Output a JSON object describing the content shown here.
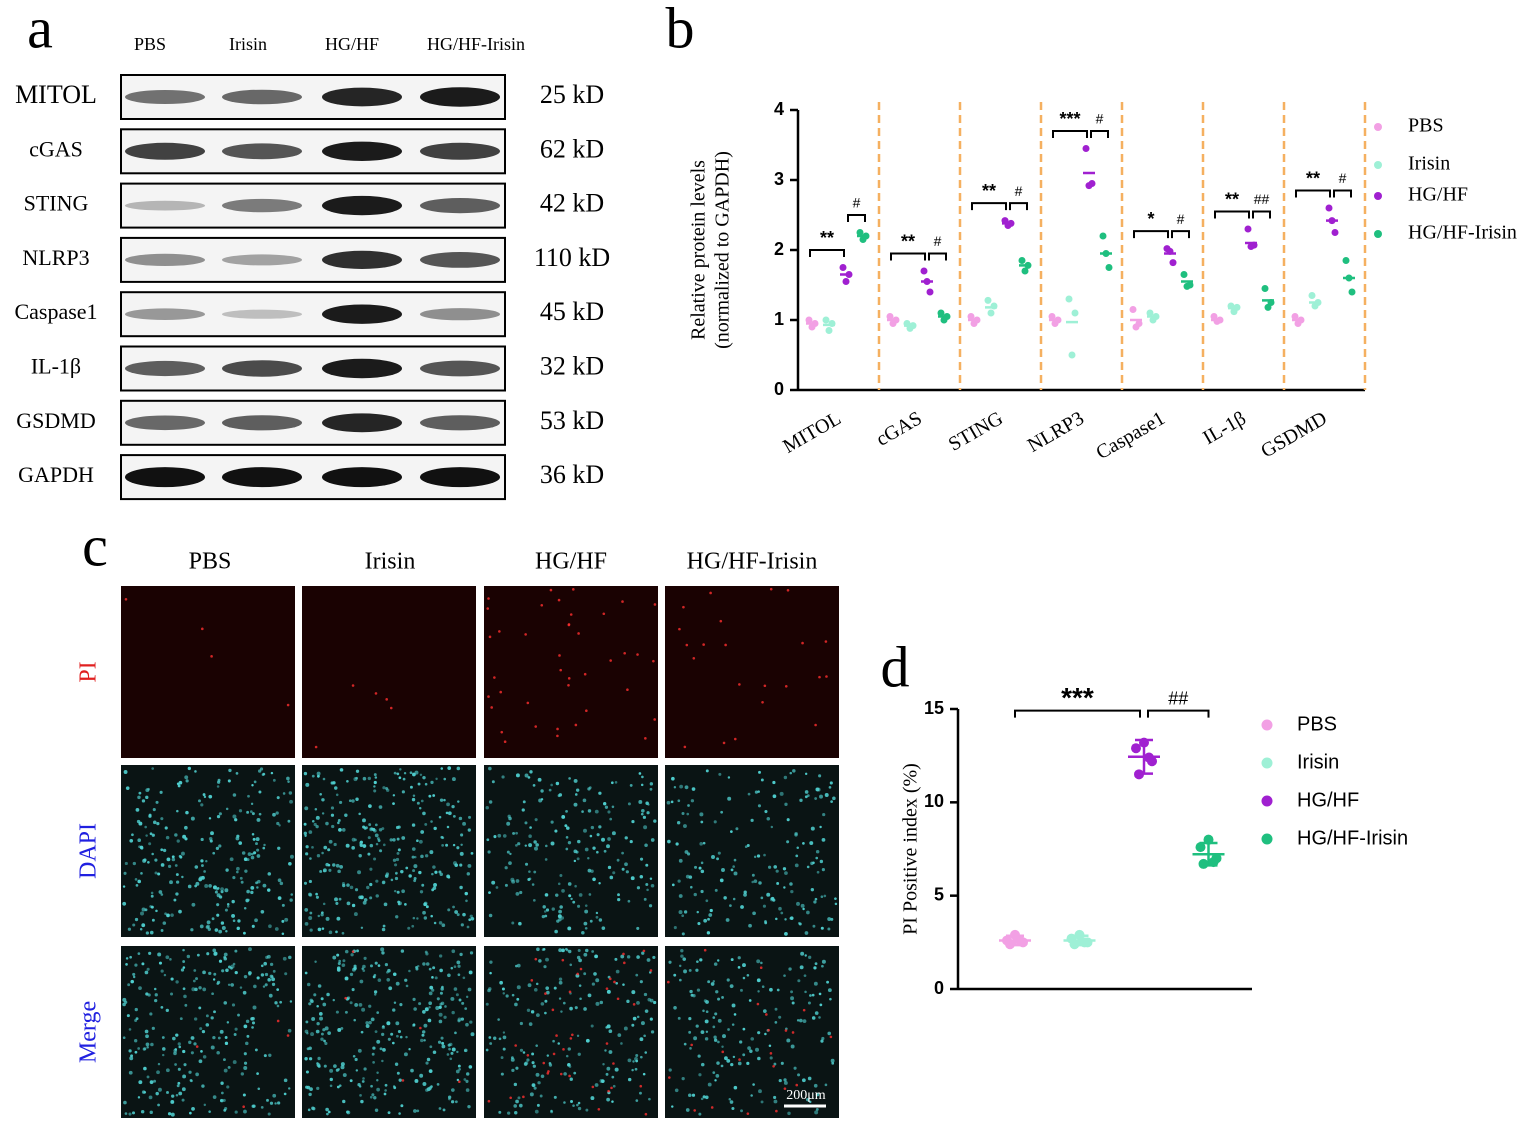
{
  "panel_a": {
    "label": "a",
    "lanes": [
      "PBS",
      "Irisin",
      "HG/HF",
      "HG/HF-Irisin"
    ],
    "rows": [
      {
        "protein": "MITOL",
        "size": "25 kD"
      },
      {
        "protein": "cGAS",
        "size": "62 kD"
      },
      {
        "protein": "STING",
        "size": "42 kD"
      },
      {
        "protein": "NLRP3",
        "size": "110 kD"
      },
      {
        "protein": "Caspase1",
        "size": "45 kD"
      },
      {
        "protein": "IL-1β",
        "size": "32 kD"
      },
      {
        "protein": "GSDMD",
        "size": "53 kD"
      },
      {
        "protein": "GAPDH",
        "size": "36 kD"
      }
    ]
  },
  "panel_c": {
    "label": "c",
    "columns": [
      "PBS",
      "Irisin",
      "HG/HF",
      "HG/HF-Irisin"
    ],
    "rows": [
      "PI",
      "DAPI",
      "Merge"
    ],
    "scale_bar": "200μm"
  },
  "chart_data": [
    {
      "type": "dotplot",
      "panel_label": "b",
      "ylabel": [
        "Relative protein levels",
        "(normalized to GAPDH)"
      ],
      "categories": [
        "MITOL",
        "cGAS",
        "STING",
        "NLRP3",
        "Caspase1",
        "IL-1β",
        "GSDMD"
      ],
      "ylim": [
        0,
        4
      ],
      "yticks": [
        0,
        1,
        2,
        3,
        4
      ],
      "series": [
        {
          "name": "PBS",
          "color": "#f2a0e4",
          "values": [
            0.95,
            1.0,
            1.0,
            1.0,
            1.0,
            1.0,
            1.0
          ],
          "points": [
            [
              1.0,
              0.9,
              0.95
            ],
            [
              1.05,
              0.95,
              1.0
            ],
            [
              1.05,
              0.95,
              1.0
            ],
            [
              1.05,
              0.95,
              1.0
            ],
            [
              1.15,
              0.9,
              0.95
            ],
            [
              1.05,
              0.98,
              1.0
            ],
            [
              1.05,
              0.95,
              1.0
            ]
          ]
        },
        {
          "name": "Irisin",
          "color": "#9ef0d6",
          "values": [
            0.93,
            0.92,
            1.18,
            0.97,
            1.05,
            1.17,
            1.25
          ],
          "points": [
            [
              1.0,
              0.85,
              0.95
            ],
            [
              0.95,
              0.88,
              0.92
            ],
            [
              1.28,
              1.1,
              1.2
            ],
            [
              1.3,
              0.5,
              1.1
            ],
            [
              1.1,
              1.0,
              1.05
            ],
            [
              1.2,
              1.12,
              1.18
            ],
            [
              1.35,
              1.2,
              1.25
            ]
          ]
        },
        {
          "name": "HG/HF",
          "color": "#a020d0",
          "values": [
            1.65,
            1.55,
            2.38,
            3.1,
            1.95,
            2.1,
            2.42
          ],
          "points": [
            [
              1.75,
              1.55,
              1.65
            ],
            [
              1.7,
              1.55,
              1.4
            ],
            [
              2.42,
              2.35,
              2.38
            ],
            [
              3.45,
              2.92,
              2.95
            ],
            [
              2.02,
              1.98,
              1.82
            ],
            [
              2.3,
              2.05,
              2.07
            ],
            [
              2.6,
              2.42,
              2.25
            ]
          ]
        },
        {
          "name": "HG/HF-Irisin",
          "color": "#1fbf7f",
          "values": [
            2.2,
            1.05,
            1.78,
            1.95,
            1.55,
            1.28,
            1.6
          ],
          "points": [
            [
              2.25,
              2.15,
              2.2
            ],
            [
              1.1,
              1.0,
              1.05
            ],
            [
              1.85,
              1.7,
              1.78
            ],
            [
              2.2,
              1.95,
              1.75
            ],
            [
              1.65,
              1.48,
              1.5
            ],
            [
              1.45,
              1.18,
              1.25
            ],
            [
              1.85,
              1.6,
              1.4
            ]
          ]
        }
      ],
      "significance": [
        [
          "**",
          "#"
        ],
        [
          "**",
          "#"
        ],
        [
          "**",
          "#"
        ],
        [
          "***",
          "#"
        ],
        [
          "*",
          "#"
        ],
        [
          "**",
          "##"
        ],
        [
          "**",
          "#"
        ]
      ]
    },
    {
      "type": "dotplot",
      "panel_label": "d",
      "ylabel": [
        "PI Positive index (%)"
      ],
      "ylim": [
        0,
        15
      ],
      "yticks": [
        0,
        5,
        10,
        15
      ],
      "series": [
        {
          "name": "PBS",
          "color": "#f2a0e4",
          "values": [
            2.6
          ],
          "errors": [
            0.25
          ],
          "points": [
            [
              2.9,
              2.6,
              2.5,
              2.4,
              2.6
            ]
          ]
        },
        {
          "name": "Irisin",
          "color": "#9ef0d6",
          "values": [
            2.6
          ],
          "errors": [
            0.25
          ],
          "points": [
            [
              2.9,
              2.7,
              2.5,
              2.4,
              2.5
            ]
          ]
        },
        {
          "name": "HG/HF",
          "color": "#a020d0",
          "values": [
            12.44
          ],
          "errors": [
            0.9
          ],
          "points": [
            [
              13.2,
              12.9,
              12.2,
              11.5,
              12.4
            ]
          ]
        },
        {
          "name": "HG/HF-Irisin",
          "color": "#1fbf7f",
          "values": [
            7.22
          ],
          "errors": [
            0.6
          ],
          "points": [
            [
              8.0,
              7.6,
              7.0,
              6.7,
              6.8
            ]
          ]
        }
      ],
      "significance": [
        {
          "from": 0,
          "to": 2,
          "label": "***"
        },
        {
          "from": 2,
          "to": 3,
          "label": "##"
        }
      ]
    }
  ]
}
